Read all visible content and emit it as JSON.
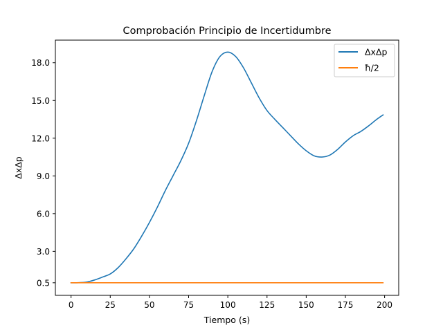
{
  "chart_data": {
    "type": "line",
    "title": "Comprobación Principio de Incertidumbre",
    "xlabel": "Tiempo (s)",
    "ylabel": "ΔxΔp",
    "xlim": [
      -10,
      209
    ],
    "ylim": [
      -0.5,
      19.8
    ],
    "xticks": [
      0,
      25,
      50,
      75,
      100,
      125,
      150,
      175,
      200
    ],
    "xtick_labels": [
      "0",
      "25",
      "50",
      "75",
      "100",
      "125",
      "150",
      "175",
      "200"
    ],
    "yticks": [
      0.5,
      3.0,
      6.0,
      9.0,
      12.0,
      15.0,
      18.0
    ],
    "ytick_labels": [
      "0.5",
      "3.0",
      "6.0",
      "9.0",
      "12.0",
      "15.0",
      "18.0"
    ],
    "grid": false,
    "legend_position": "upper right",
    "series": [
      {
        "name": "ΔxΔp",
        "color": "#1f77b4",
        "x": [
          0,
          5,
          10,
          15,
          20,
          25,
          30,
          35,
          40,
          45,
          50,
          55,
          60,
          65,
          70,
          75,
          80,
          85,
          90,
          95,
          100,
          105,
          110,
          115,
          120,
          125,
          130,
          135,
          140,
          145,
          150,
          155,
          160,
          165,
          170,
          175,
          180,
          185,
          190,
          195,
          199
        ],
        "y": [
          0.5,
          0.51,
          0.56,
          0.72,
          0.95,
          1.2,
          1.7,
          2.4,
          3.2,
          4.2,
          5.3,
          6.5,
          7.8,
          9.0,
          10.2,
          11.6,
          13.4,
          15.4,
          17.3,
          18.5,
          18.85,
          18.5,
          17.6,
          16.4,
          15.2,
          14.2,
          13.5,
          12.85,
          12.2,
          11.55,
          11.0,
          10.6,
          10.5,
          10.65,
          11.1,
          11.7,
          12.2,
          12.55,
          13.0,
          13.5,
          13.85
        ]
      },
      {
        "name": "ħ/2",
        "color": "#ff7f0e",
        "x": [
          0,
          199
        ],
        "y": [
          0.5,
          0.5
        ]
      }
    ]
  }
}
